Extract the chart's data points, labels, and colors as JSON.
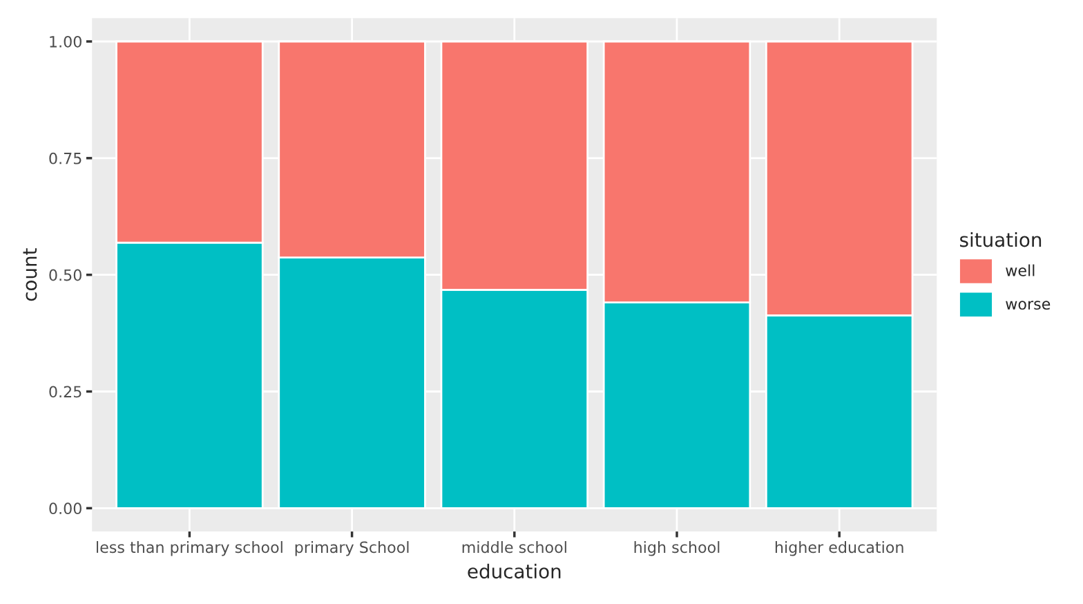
{
  "chart_data": {
    "type": "bar",
    "stacked": true,
    "xlabel": "education",
    "ylabel": "count",
    "legend_title": "situation",
    "legend": "right",
    "categories": [
      "less than primary school",
      "primary School",
      "middle school",
      "high school",
      "higher education"
    ],
    "series": [
      {
        "name": "worse",
        "color": "#00bfc4",
        "values": [
          0.569,
          0.537,
          0.468,
          0.441,
          0.413
        ]
      },
      {
        "name": "well",
        "color": "#f8766d",
        "values": [
          0.431,
          0.463,
          0.532,
          0.559,
          0.587
        ]
      }
    ],
    "ylim": [
      -0.05,
      1.05
    ],
    "yticks": [
      {
        "value": 0,
        "label": "0.00"
      },
      {
        "value": 0.25,
        "label": "0.25"
      },
      {
        "value": 0.5,
        "label": "0.50"
      },
      {
        "value": 0.75,
        "label": "0.75"
      },
      {
        "value": 1,
        "label": "1.00"
      }
    ],
    "grid": true
  }
}
